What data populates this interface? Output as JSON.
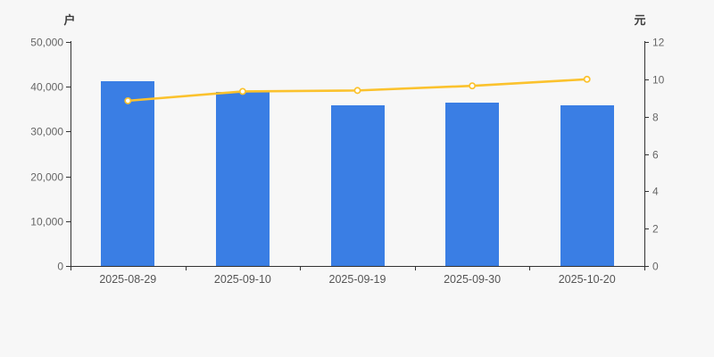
{
  "page": {
    "background": "#f7f7f7"
  },
  "chart_data": {
    "type": "combo",
    "subtype": "bar+line",
    "categories": [
      "2025-08-29",
      "2025-09-10",
      "2025-09-19",
      "2025-09-30",
      "2025-10-20"
    ],
    "series": [
      {
        "name": "户",
        "type": "bar",
        "axis": "left",
        "color": "#3a7ee4",
        "values": [
          41200,
          38900,
          35950,
          36400,
          35800
        ]
      },
      {
        "name": "元",
        "type": "line",
        "axis": "right",
        "color": "#fbc22d",
        "marker": "circle",
        "marker_fill": "#ffffff",
        "values": [
          8.85,
          9.35,
          9.4,
          9.65,
          10.0
        ]
      }
    ],
    "left_axis": {
      "unit": "户",
      "min": 0,
      "max": 50000,
      "tick_step": 10000,
      "tick_labels": [
        "0",
        "10,000",
        "20,000",
        "30,000",
        "40,000",
        "50,000"
      ]
    },
    "right_axis": {
      "unit": "元",
      "min": 0,
      "max": 12,
      "tick_step": 2,
      "tick_labels": [
        "0",
        "2",
        "4",
        "6",
        "8",
        "10",
        "12"
      ]
    },
    "grid": false,
    "legend": false,
    "title": "",
    "styles": {
      "axis_color": "#333333",
      "tick_label_color": "#666666",
      "x_label_color": "#555555",
      "bar_color": "#3a7ee4",
      "line_color": "#fbc22d",
      "background": "#f7f7f7"
    }
  }
}
